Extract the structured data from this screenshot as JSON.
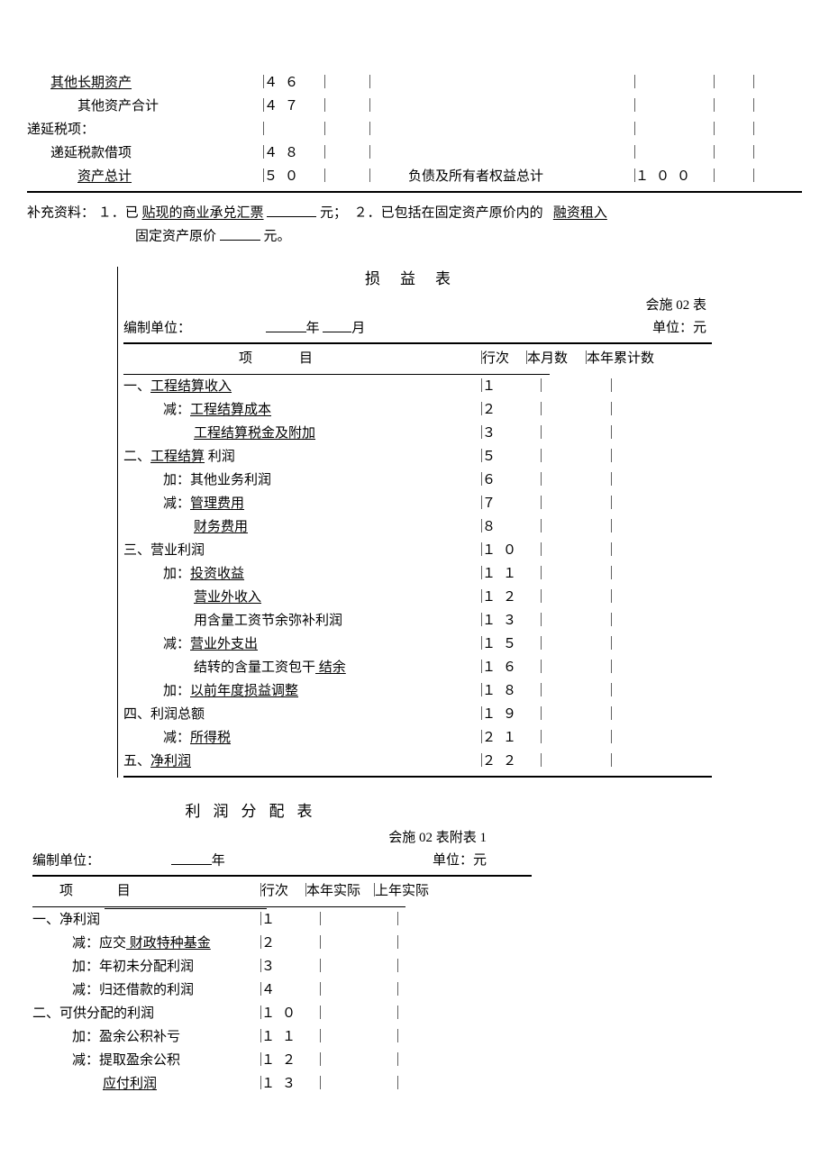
{
  "top": {
    "rows": [
      {
        "label": "其他长期资产",
        "uline": true,
        "num": "４６",
        "indent": 1,
        "rlabel": "",
        "rnum": ""
      },
      {
        "label": "其他资产合计",
        "uline": false,
        "num": "４７",
        "indent": 2,
        "rlabel": "",
        "rnum": ""
      },
      {
        "label": "递延税项：",
        "uline": false,
        "num": "",
        "indent": 0,
        "rlabel": "",
        "rnum": ""
      },
      {
        "label": "递延税款借项",
        "uline": false,
        "num": "４８",
        "indent": 1,
        "rlabel": "",
        "rnum": ""
      },
      {
        "label": "资产总计",
        "uline": true,
        "num": "５０",
        "indent": 2,
        "rlabel": "负债及所有者权益总计",
        "rnum": "１００"
      }
    ]
  },
  "supp": {
    "prefix": "补充资料：",
    "item1a": "１．已",
    "item1b": "贴现的商业承兑汇票",
    "item1c": "元；",
    "item2a": "２．已包括在固定资产原价内的",
    "item2b": "融资租入",
    "line2a": "固定资产原价",
    "line2c": "元。"
  },
  "inc": {
    "title": "损益表",
    "sheetno": "会施 02 表",
    "unitlabel": "编制单位：",
    "yearlabel": "年",
    "monthlabel": "月",
    "currlabel": "单位：元",
    "hdr_item": "项目",
    "hdr_row": "行次",
    "hdr_m": "本月数",
    "hdr_y": "本年累计数",
    "rows": [
      {
        "label": "一、",
        "text": "工程结算收入",
        "uline": true,
        "num": "１",
        "ind": 0
      },
      {
        "label": "减：",
        "text": "工程结算成本",
        "uline": true,
        "num": "２",
        "ind": 1
      },
      {
        "label": "",
        "text": "工程结算税金及附加",
        "uline": true,
        "num": "３",
        "ind": 2
      },
      {
        "label": "二、",
        "text": "工程结算",
        "uline": true,
        "text2": " 利润",
        "num": "５",
        "ind": 0
      },
      {
        "label": "加：",
        "text": "其他业务利润",
        "uline": false,
        "num": "６",
        "ind": 1
      },
      {
        "label": "减：",
        "text": "管理费用",
        "uline": true,
        "num": "７",
        "ind": 1
      },
      {
        "label": "",
        "text": "财务费用",
        "uline": true,
        "num": "８",
        "ind": 2
      },
      {
        "label": "三、",
        "text": "营业利润",
        "uline": false,
        "num": "１０",
        "ind": 0
      },
      {
        "label": "加：",
        "text": "投资收益",
        "uline": true,
        "num": "１１",
        "ind": 1
      },
      {
        "label": "",
        "text": "营业外收入",
        "uline": true,
        "num": "１２",
        "ind": 2
      },
      {
        "label": "",
        "text": "用含量工资节余弥补利润",
        "uline": false,
        "num": "１３",
        "ind": 2
      },
      {
        "label": "减：",
        "text": "营业外支出",
        "uline": true,
        "num": "１５",
        "ind": 1
      },
      {
        "label": "",
        "text": "结转的含量工资包干",
        "uline": false,
        "text2u": " 结余",
        "num": "１６",
        "ind": 2
      },
      {
        "label": "加：",
        "text": "以前年度损益调整",
        "uline": true,
        "num": "１８",
        "ind": 1
      },
      {
        "label": "四、",
        "text": "利润总额",
        "uline": false,
        "num": "１９",
        "ind": 0
      },
      {
        "label": "减：",
        "text": "所得税",
        "uline": true,
        "num": "２１",
        "ind": 1
      },
      {
        "label": "五、",
        "text": "净利润",
        "uline": true,
        "num": "２２",
        "ind": 0
      }
    ]
  },
  "pd": {
    "title": "利润分配表",
    "sheetno": "会施 02 表附表 1",
    "unitlabel": "编制单位：",
    "yearlabel": "年",
    "currlabel": "单位：元",
    "hdr_item1": "项",
    "hdr_item2": "目",
    "hdr_row": "行次",
    "hdr_cur": "本年实际",
    "hdr_prev": "上年实际",
    "rows": [
      {
        "label": "一、",
        "text": "净利润",
        "uline": false,
        "num": "１",
        "ind": 0
      },
      {
        "label": "减：应交",
        "text": " 财政特种基金",
        "uline": true,
        "num": "２",
        "ind": 1
      },
      {
        "label": "加：",
        "text": "年初未分配利润",
        "uline": false,
        "num": "３",
        "ind": 1
      },
      {
        "label": "减：",
        "text": "归还借款的利润",
        "uline": false,
        "num": "４",
        "ind": 1
      },
      {
        "label": "二、",
        "text": "可供分配的利润",
        "uline": false,
        "num": "１０",
        "ind": 0
      },
      {
        "label": "加：",
        "text": "盈余公积补亏",
        "uline": false,
        "num": "１１",
        "ind": 1
      },
      {
        "label": "减：",
        "text": "提取盈余公积",
        "uline": false,
        "num": "１２",
        "ind": 1
      },
      {
        "label": "",
        "text": "应付利润",
        "uline": true,
        "num": "１３",
        "ind": 2
      }
    ]
  }
}
